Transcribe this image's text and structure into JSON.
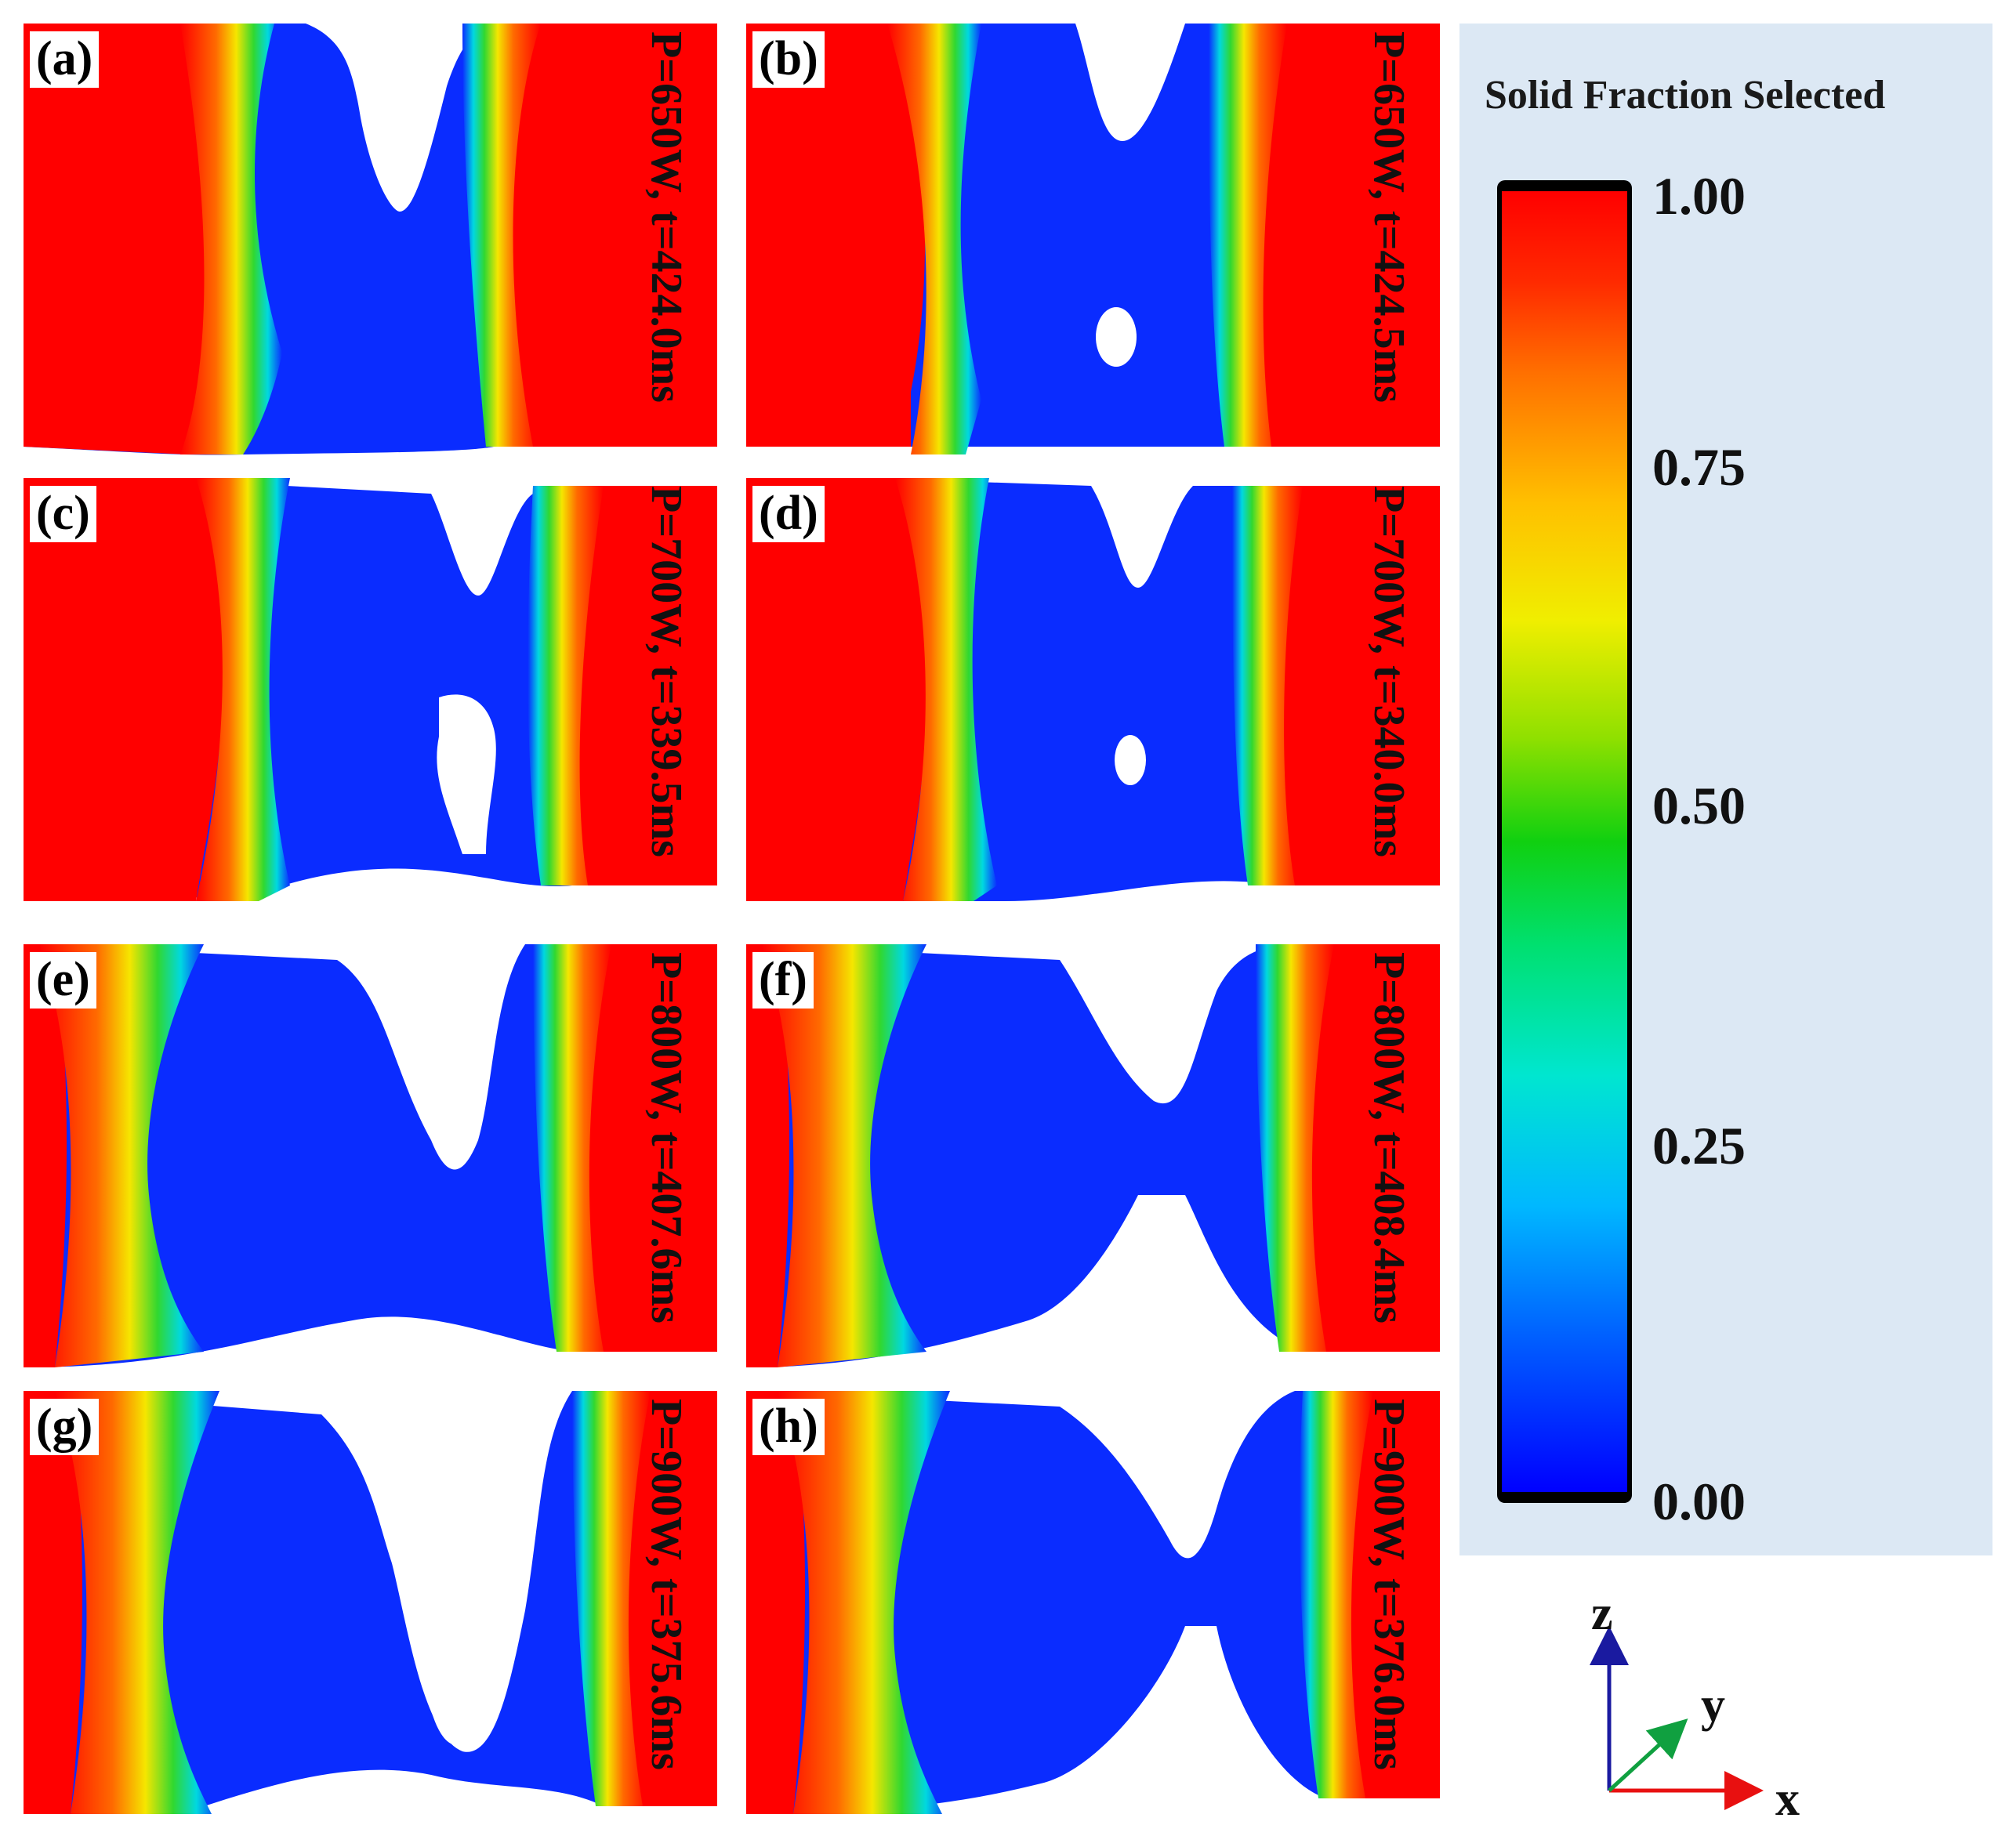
{
  "panels": [
    {
      "id": "a",
      "letter": "(a)",
      "caption": "P=650W, t=424.0ms"
    },
    {
      "id": "b",
      "letter": "(b)",
      "caption": "P=650W, t=424.5ms"
    },
    {
      "id": "c",
      "letter": "(c)",
      "caption": "P=700W, t=339.5ms"
    },
    {
      "id": "d",
      "letter": "(d)",
      "caption": "P=700W, t=340.0ms"
    },
    {
      "id": "e",
      "letter": "(e)",
      "caption": "P=800W, t=407.6ms"
    },
    {
      "id": "f",
      "letter": "(f)",
      "caption": "P=800W, t=408.4ms"
    },
    {
      "id": "g",
      "letter": "(g)",
      "caption": "P=900W, t=375.6ms"
    },
    {
      "id": "h",
      "letter": "(h)",
      "caption": "P=900W, t=376.0ms"
    }
  ],
  "legend": {
    "title": "Solid Fraction Selected",
    "ticks": [
      "1.00",
      "0.75",
      "0.50",
      "0.25",
      "0.00"
    ],
    "colors": {
      "min": "#0000ff",
      "mid": "#10d010",
      "max": "#ff0000"
    }
  },
  "axes": {
    "z": "z",
    "y": "y",
    "x": "x"
  }
}
